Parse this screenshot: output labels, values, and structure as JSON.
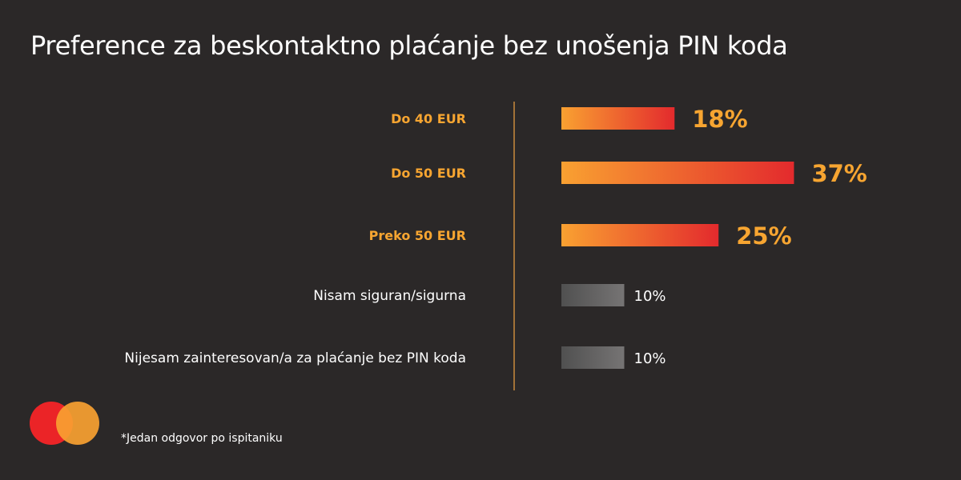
{
  "title": "Preference za beskontaktno plaćanje bez unošenja PIN koda",
  "footnote": "*Jedan odgovor po ispitaniku",
  "colors": {
    "background": "#2b2828",
    "highlight_text": "#f7a531",
    "bar_gradient_start": "#f9a131",
    "bar_gradient_end": "#e32a2d",
    "grey_gradient_start": "#505050",
    "grey_gradient_end": "#767474",
    "divider": "#c98a3c",
    "logo_left": "#eb2427",
    "logo_right": "#f9a131"
  },
  "chart_data": {
    "type": "bar",
    "orientation": "horizontal",
    "title": "Preference za beskontaktno plaćanje bez unošenja PIN koda",
    "categories": [
      "Do 40 EUR",
      "Do 50 EUR",
      "Preko 50 EUR",
      "Nisam siguran/sigurna",
      "Nijesam zainteresovan/a za plaćanje bez PIN koda"
    ],
    "values": [
      18,
      37,
      25,
      10,
      10
    ],
    "value_labels": [
      "18%",
      "37%",
      "25%",
      "10%",
      "10%"
    ],
    "highlighted": [
      true,
      true,
      true,
      false,
      false
    ],
    "unit": "%",
    "xlim": [
      0,
      40
    ],
    "grid": false,
    "legend": "none"
  }
}
